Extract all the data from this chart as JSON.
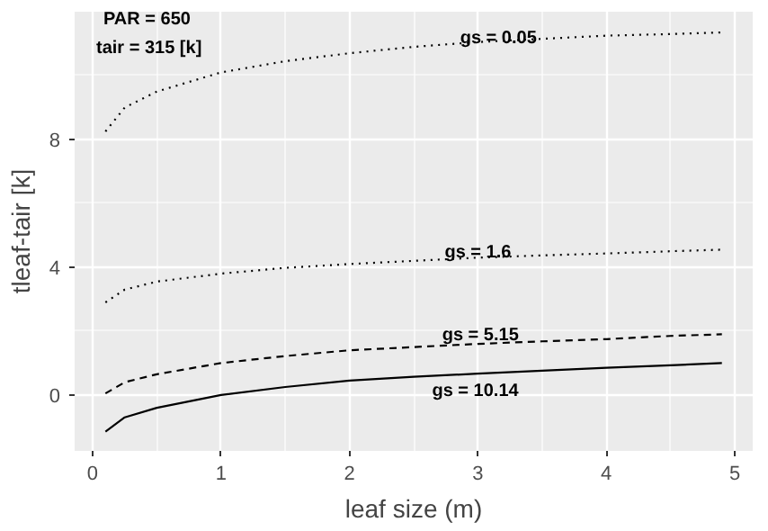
{
  "chart_data": {
    "type": "line",
    "xlabel": "leaf size (m)",
    "ylabel": "tleaf-tair [k]",
    "x": [
      0.1,
      0.25,
      0.5,
      1,
      1.5,
      2,
      2.5,
      3,
      3.5,
      4,
      4.5,
      4.9
    ],
    "series": [
      {
        "color": "#000000",
        "line_style": "dotted",
        "values": [
          8.25,
          9.0,
          9.5,
          10.1,
          10.45,
          10.7,
          10.9,
          11.05,
          11.15,
          11.25,
          11.3,
          11.35
        ]
      },
      {
        "color": "#000000",
        "line_style": "dotted",
        "values": [
          2.9,
          3.3,
          3.55,
          3.8,
          3.98,
          4.1,
          4.2,
          4.3,
          4.37,
          4.43,
          4.5,
          4.55
        ]
      },
      {
        "color": "#000000",
        "line_style": "dashed",
        "values": [
          0.05,
          0.4,
          0.65,
          1.0,
          1.22,
          1.4,
          1.5,
          1.6,
          1.68,
          1.75,
          1.85,
          1.9
        ]
      },
      {
        "color": "#000000",
        "line_style": "solid",
        "values": [
          -1.15,
          -0.7,
          -0.4,
          0.0,
          0.25,
          0.45,
          0.57,
          0.67,
          0.76,
          0.85,
          0.93,
          1.0
        ]
      }
    ],
    "annotations": [
      "PAR = 650",
      "tair = 315 [k]",
      {
        "text": "gs = 0.05",
        "x": 3.16,
        "y": 11.15
      },
      {
        "text": "gs = 1.6",
        "x": 3.0,
        "y": 4.45
      },
      {
        "text": "gs = 5.15",
        "x": 3.02,
        "y": 1.86
      },
      {
        "text": "gs = 10.14",
        "x": 2.98,
        "y": 0.67
      }
    ],
    "xlim": [
      -0.14,
      5.14
    ],
    "ylim": [
      -1.75,
      12.0
    ],
    "xticks": [
      0,
      1,
      2,
      3,
      4,
      5
    ],
    "yticks": [
      0,
      4,
      8
    ],
    "grid": true
  }
}
